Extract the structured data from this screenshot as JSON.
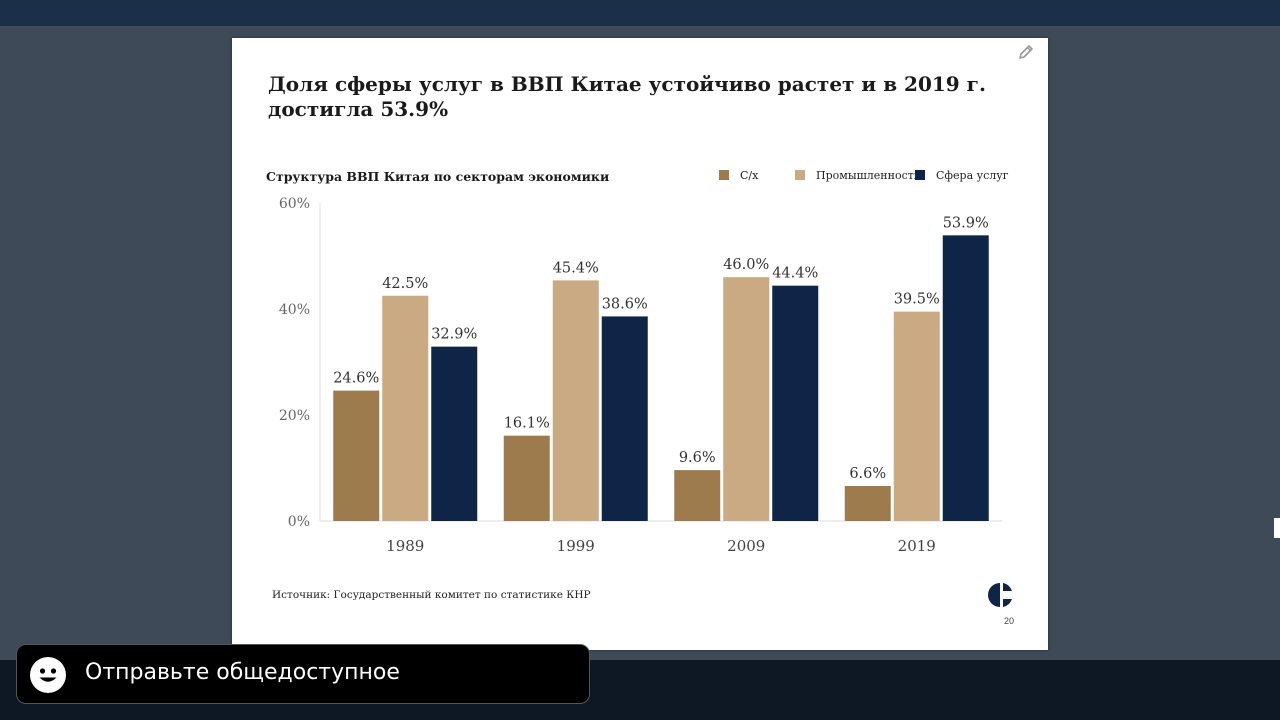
{
  "slide": {
    "title": "Доля сферы услуг в ВВП Китае устойчиво растет и в 2019 г. достигла 53.9%",
    "source": "Источник: Государственный комитет по статистике КНР",
    "page_number": "20",
    "edit_icon": "pencil-icon",
    "logo_icon": "logo-c-icon"
  },
  "chart_data": {
    "type": "bar",
    "title": "Структура ВВП Китая по секторам экономики",
    "categories": [
      "1989",
      "1999",
      "2009",
      "2019"
    ],
    "series": [
      {
        "name": "С/х",
        "values": [
          24.6,
          16.1,
          9.6,
          6.6
        ],
        "color": "#9e7b4d",
        "labels": [
          "24.6%",
          "16.1%",
          "9.6%",
          "6.6%"
        ]
      },
      {
        "name": "Промышленность",
        "values": [
          42.5,
          45.4,
          46.0,
          39.5
        ],
        "color": "#c9aa82",
        "labels": [
          "42.5%",
          "45.4%",
          "46.0%",
          "39.5%"
        ]
      },
      {
        "name": "Сфера услуг",
        "values": [
          32.9,
          38.6,
          44.4,
          53.9
        ],
        "color": "#0f2547",
        "labels": [
          "32.9%",
          "38.6%",
          "44.4%",
          "53.9%"
        ]
      }
    ],
    "ylim": [
      0,
      60
    ],
    "yticks": [
      0,
      20,
      40,
      60
    ],
    "ytick_labels": [
      "0%",
      "20%",
      "40%",
      "60%"
    ],
    "legend_position": "top-right",
    "grid": false
  },
  "caption": {
    "text": "Отправьте общедоступное",
    "icon": "smiley-icon"
  }
}
